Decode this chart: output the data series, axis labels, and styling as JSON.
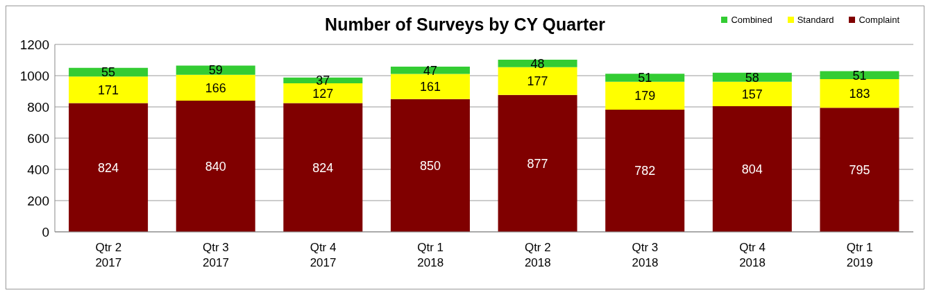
{
  "chart_data": {
    "type": "bar",
    "title": "Number of Surveys by CY Quarter",
    "categories": [
      "Qtr 2\n2017",
      "Qtr 3\n2017",
      "Qtr 4\n2017",
      "Qtr 1\n2018",
      "Qtr 2\n2018",
      "Qtr 3\n2018",
      "Qtr 4\n2018",
      "Qtr 1\n2019"
    ],
    "series": [
      {
        "name": "Complaint",
        "color": "#800000",
        "values": [
          824,
          840,
          824,
          850,
          877,
          782,
          804,
          795
        ]
      },
      {
        "name": "Standard",
        "color": "#ffff00",
        "values": [
          171,
          166,
          127,
          161,
          177,
          179,
          157,
          183
        ]
      },
      {
        "name": "Combined",
        "color": "#33cc33",
        "values": [
          55,
          59,
          37,
          47,
          48,
          51,
          58,
          51
        ]
      }
    ],
    "stacked": true,
    "ylim": [
      0,
      1200
    ],
    "yticks": [
      0,
      200,
      400,
      600,
      800,
      1000,
      1200
    ],
    "grid": "y",
    "legend": "top right",
    "data_labels": true
  }
}
